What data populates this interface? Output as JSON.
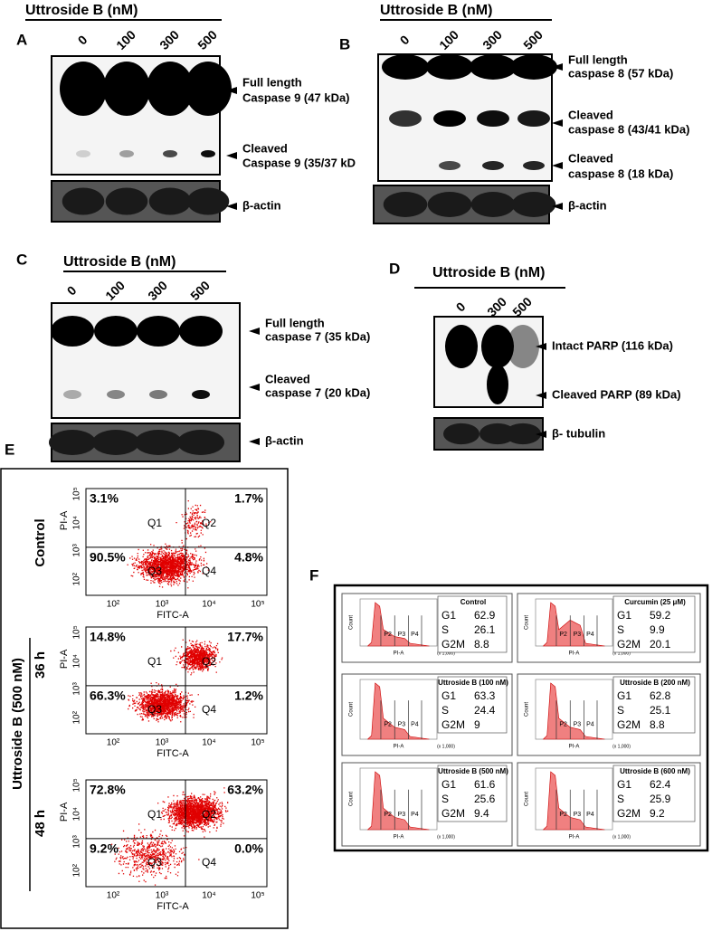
{
  "panels": {
    "a": {
      "label": "A",
      "treatment": "Uttroside B (nM)",
      "lanes": [
        "0",
        "100",
        "300",
        "500"
      ],
      "bands": [
        [
          "Full length",
          "Caspase 9 (47 kDa)"
        ],
        [
          "Cleaved",
          "Caspase 9 (35/37 kD"
        ]
      ],
      "loading_control": "β-actin"
    },
    "b": {
      "label": "B",
      "treatment": "Uttroside B (nM)",
      "lanes": [
        "0",
        "100",
        "300",
        "500"
      ],
      "bands": [
        [
          "Full length",
          "caspase 8 (57 kDa)"
        ],
        [
          "Cleaved",
          "caspase 8 (43/41 kDa)"
        ],
        [
          "Cleaved",
          "caspase 8 (18 kDa)"
        ]
      ],
      "loading_control": "β-actin"
    },
    "c": {
      "label": "C",
      "treatment": "Uttroside B (nM)",
      "lanes": [
        "0",
        "100",
        "300",
        "500"
      ],
      "bands": [
        [
          "Full length",
          "caspase 7 (35 kDa)"
        ],
        [
          "Cleaved",
          "caspase 7 (20 kDa)"
        ]
      ],
      "loading_control": "β-actin"
    },
    "d": {
      "label": "D",
      "treatment": "Uttroside B (nM)",
      "lanes": [
        "0",
        "300",
        "500"
      ],
      "bands": [
        [
          "Intact PARP (116 kDa)"
        ],
        [
          "Cleaved PARP (89 kDa)"
        ]
      ],
      "loading_control": "β- tubulin"
    },
    "e": {
      "label": "E",
      "group": "Uttroside B (500 nM)",
      "x_axis": "FITC-A",
      "y_axis": "PI-A",
      "x_ticks": [
        "10²",
        "10³",
        "10⁴",
        "10⁵"
      ],
      "y_ticks": [
        "10²",
        "10³",
        "10⁴",
        "10⁵"
      ],
      "plots": [
        {
          "condition": "Control",
          "quadrants": [
            "Q1",
            "Q2",
            "Q3",
            "Q4"
          ],
          "percentages": [
            "3.1%",
            "1.7%",
            "90.5%",
            "4.8%"
          ]
        },
        {
          "condition": "36 h",
          "quadrants": [
            "Q1",
            "Q2",
            "Q3",
            "Q4"
          ],
          "percentages": [
            "14.8%",
            "17.7%",
            "66.3%",
            "1.2%"
          ]
        },
        {
          "condition": "48 h",
          "quadrants": [
            "Q1",
            "Q2",
            "Q3",
            "Q4"
          ],
          "percentages": [
            "72.8%",
            "63.2%",
            "9.2%",
            "0.0%"
          ]
        }
      ]
    },
    "f": {
      "label": "F",
      "x_axis": "PI-A",
      "y_axis": "Count",
      "x_unit": "(x 1,000)",
      "gates": [
        "P2",
        "P3",
        "P4"
      ],
      "panels": [
        {
          "title": "Control",
          "phases": [
            "G1",
            "S",
            "G2M"
          ],
          "values": [
            62.9,
            26.1,
            8.8
          ]
        },
        {
          "title": "Curcumin (25 μM)",
          "phases": [
            "G1",
            "S",
            "G2M"
          ],
          "values": [
            59.2,
            9.9,
            20.1
          ]
        },
        {
          "title": "Uttroside B (100 nM)",
          "phases": [
            "G1",
            "S",
            "G2M"
          ],
          "values": [
            63.3,
            24.4,
            9
          ]
        },
        {
          "title": "Uttroside B (200 nM)",
          "phases": [
            "G1",
            "S",
            "G2M"
          ],
          "values": [
            62.8,
            25.1,
            8.8
          ]
        },
        {
          "title": "Uttroside B (500 nM)",
          "phases": [
            "G1",
            "S",
            "G2M"
          ],
          "values": [
            61.6,
            25.6,
            9.4
          ]
        },
        {
          "title": "Uttroside B (600 nM)",
          "phases": [
            "G1",
            "S",
            "G2M"
          ],
          "values": [
            62.4,
            25.9,
            9.2
          ]
        }
      ]
    }
  }
}
